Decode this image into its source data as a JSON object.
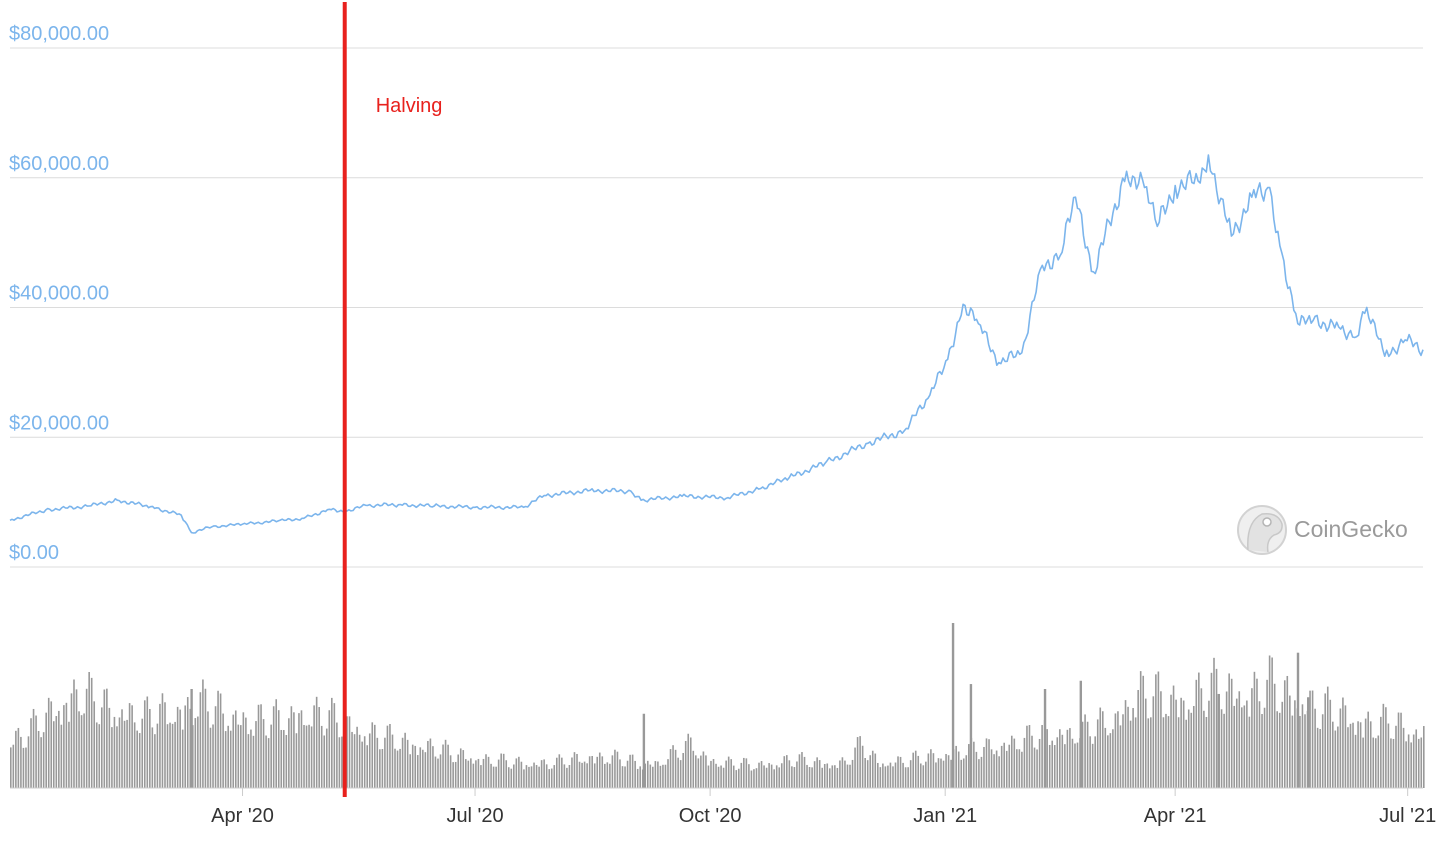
{
  "chart_data": {
    "type": "line",
    "title": "",
    "xlabel": "",
    "ylabel": "",
    "x_range": [
      "2020-01-01",
      "2021-07-07"
    ],
    "ylim": [
      0,
      80000
    ],
    "y_ticks": [
      {
        "value": 0,
        "label": "$0.00"
      },
      {
        "value": 20000,
        "label": "$20,000.00"
      },
      {
        "value": 40000,
        "label": "$40,000.00"
      },
      {
        "value": 60000,
        "label": "$60,000.00"
      },
      {
        "value": 80000,
        "label": "$80,000.00"
      }
    ],
    "x_ticks": [
      {
        "date": "2020-04-01",
        "label": "Apr '20"
      },
      {
        "date": "2020-07-01",
        "label": "Jul '20"
      },
      {
        "date": "2020-10-01",
        "label": "Oct '20"
      },
      {
        "date": "2021-01-01",
        "label": "Jan '21"
      },
      {
        "date": "2021-04-01",
        "label": "Apr '21"
      },
      {
        "date": "2021-07-01",
        "label": "Jul '21"
      }
    ],
    "grid": true,
    "legend": "none",
    "series": [
      {
        "color": "#7cb5ec",
        "points": [
          [
            "2020-01-01",
            7200
          ],
          [
            "2020-01-15",
            8800
          ],
          [
            "2020-02-01",
            9400
          ],
          [
            "2020-02-12",
            10300
          ],
          [
            "2020-02-25",
            9300
          ],
          [
            "2020-03-08",
            8000
          ],
          [
            "2020-03-12",
            5300
          ],
          [
            "2020-03-20",
            6200
          ],
          [
            "2020-04-01",
            6600
          ],
          [
            "2020-04-15",
            7100
          ],
          [
            "2020-04-25",
            7500
          ],
          [
            "2020-05-05",
            8900
          ],
          [
            "2020-05-11",
            8600
          ],
          [
            "2020-05-20",
            9500
          ],
          [
            "2020-06-01",
            9600
          ],
          [
            "2020-06-15",
            9400
          ],
          [
            "2020-07-01",
            9200
          ],
          [
            "2020-07-20",
            9200
          ],
          [
            "2020-07-28",
            11000
          ],
          [
            "2020-08-15",
            11800
          ],
          [
            "2020-08-31",
            11700
          ],
          [
            "2020-09-04",
            10300
          ],
          [
            "2020-09-20",
            10900
          ],
          [
            "2020-10-08",
            10700
          ],
          [
            "2020-10-20",
            12000
          ],
          [
            "2020-11-01",
            13800
          ],
          [
            "2020-11-15",
            16000
          ],
          [
            "2020-12-01",
            19000
          ],
          [
            "2020-12-16",
            21000
          ],
          [
            "2020-12-26",
            26500
          ],
          [
            "2021-01-02",
            32000
          ],
          [
            "2021-01-08",
            40500
          ],
          [
            "2021-01-14",
            37500
          ],
          [
            "2021-01-22",
            31500
          ],
          [
            "2021-01-31",
            33000
          ],
          [
            "2021-02-08",
            46500
          ],
          [
            "2021-02-15",
            48000
          ],
          [
            "2021-02-21",
            57000
          ],
          [
            "2021-02-28",
            45500
          ],
          [
            "2021-03-13",
            61000
          ],
          [
            "2021-03-20",
            58500
          ],
          [
            "2021-03-25",
            52500
          ],
          [
            "2021-04-01",
            58800
          ],
          [
            "2021-04-10",
            59500
          ],
          [
            "2021-04-14",
            63500
          ],
          [
            "2021-04-23",
            51000
          ],
          [
            "2021-05-01",
            57000
          ],
          [
            "2021-05-08",
            58500
          ],
          [
            "2021-05-12",
            49500
          ],
          [
            "2021-05-19",
            37500
          ],
          [
            "2021-05-25",
            38000
          ],
          [
            "2021-06-04",
            37000
          ],
          [
            "2021-06-11",
            35500
          ],
          [
            "2021-06-15",
            40000
          ],
          [
            "2021-06-22",
            32500
          ],
          [
            "2021-06-30",
            35000
          ],
          [
            "2021-07-07",
            33500
          ]
        ]
      }
    ],
    "volume_bars": {
      "color": "#999999",
      "values": [
        30,
        35,
        45,
        55,
        60,
        55,
        50,
        48,
        45,
        48,
        50,
        55,
        50,
        46,
        44,
        42,
        45,
        48,
        46,
        44,
        40,
        35,
        32,
        30,
        28,
        25,
        22,
        20,
        18,
        17,
        16,
        16,
        16,
        18,
        20,
        20,
        18,
        16,
        16,
        22,
        28,
        18,
        16,
        15,
        15,
        16,
        18,
        17,
        16,
        16,
        28,
        16,
        17,
        18,
        20,
        22,
        24,
        25,
        27,
        30,
        32,
        35,
        35,
        36,
        40,
        45,
        60,
        58,
        58,
        56,
        60,
        65,
        62,
        60,
        66,
        60,
        55,
        50,
        48,
        45,
        40,
        42,
        38,
        35
      ],
      "highlights": [
        {
          "date": "2020-03-12",
          "value": 60
        },
        {
          "date": "2020-09-05",
          "value": 45
        },
        {
          "date": "2021-01-04",
          "value": 100
        },
        {
          "date": "2021-01-11",
          "value": 63
        },
        {
          "date": "2021-02-09",
          "value": 60
        },
        {
          "date": "2021-02-23",
          "value": 65
        },
        {
          "date": "2021-04-18",
          "value": 57
        },
        {
          "date": "2021-05-19",
          "value": 82
        },
        {
          "date": "2021-05-23",
          "value": 55
        }
      ]
    },
    "annotations": [
      {
        "date": "2020-05-11",
        "label": "Halving",
        "color": "#e8211d"
      }
    ]
  },
  "watermark": {
    "text": "CoinGecko",
    "icon": "gecko-icon"
  }
}
